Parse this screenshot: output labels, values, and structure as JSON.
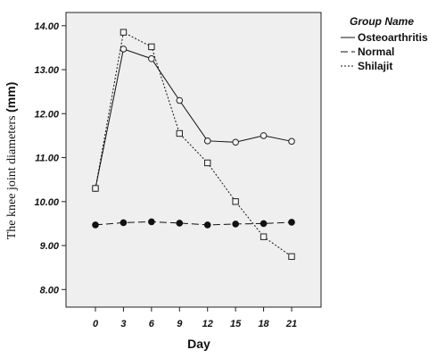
{
  "chart_data": {
    "type": "line",
    "xlabel": "Day",
    "ylabel": "The knee joint diameters",
    "ylabel_unit": "(mm)",
    "x": [
      0,
      3,
      6,
      9,
      12,
      15,
      18,
      21
    ],
    "ylim": [
      7.6,
      14.3
    ],
    "yticks": [
      "8.00",
      "9.00",
      "10.00",
      "11.00",
      "12.00",
      "13.00",
      "14.00"
    ],
    "legend_title": "Group Name",
    "legend_position": "top-right",
    "plot_background": "#efefef",
    "series": [
      {
        "name": "Osteoarthritis",
        "style": "solid",
        "marker": "open-circle",
        "values": [
          10.3,
          13.47,
          13.25,
          12.3,
          11.38,
          11.35,
          11.5,
          11.37
        ]
      },
      {
        "name": "Normal",
        "style": "dashed",
        "marker": "filled-circle",
        "values": [
          9.47,
          9.52,
          9.54,
          9.51,
          9.47,
          9.49,
          9.5,
          9.53
        ]
      },
      {
        "name": "Shilajit",
        "style": "dotted",
        "marker": "open-square",
        "values": [
          10.3,
          13.85,
          13.52,
          11.55,
          10.88,
          10.0,
          9.2,
          8.75
        ]
      }
    ]
  }
}
